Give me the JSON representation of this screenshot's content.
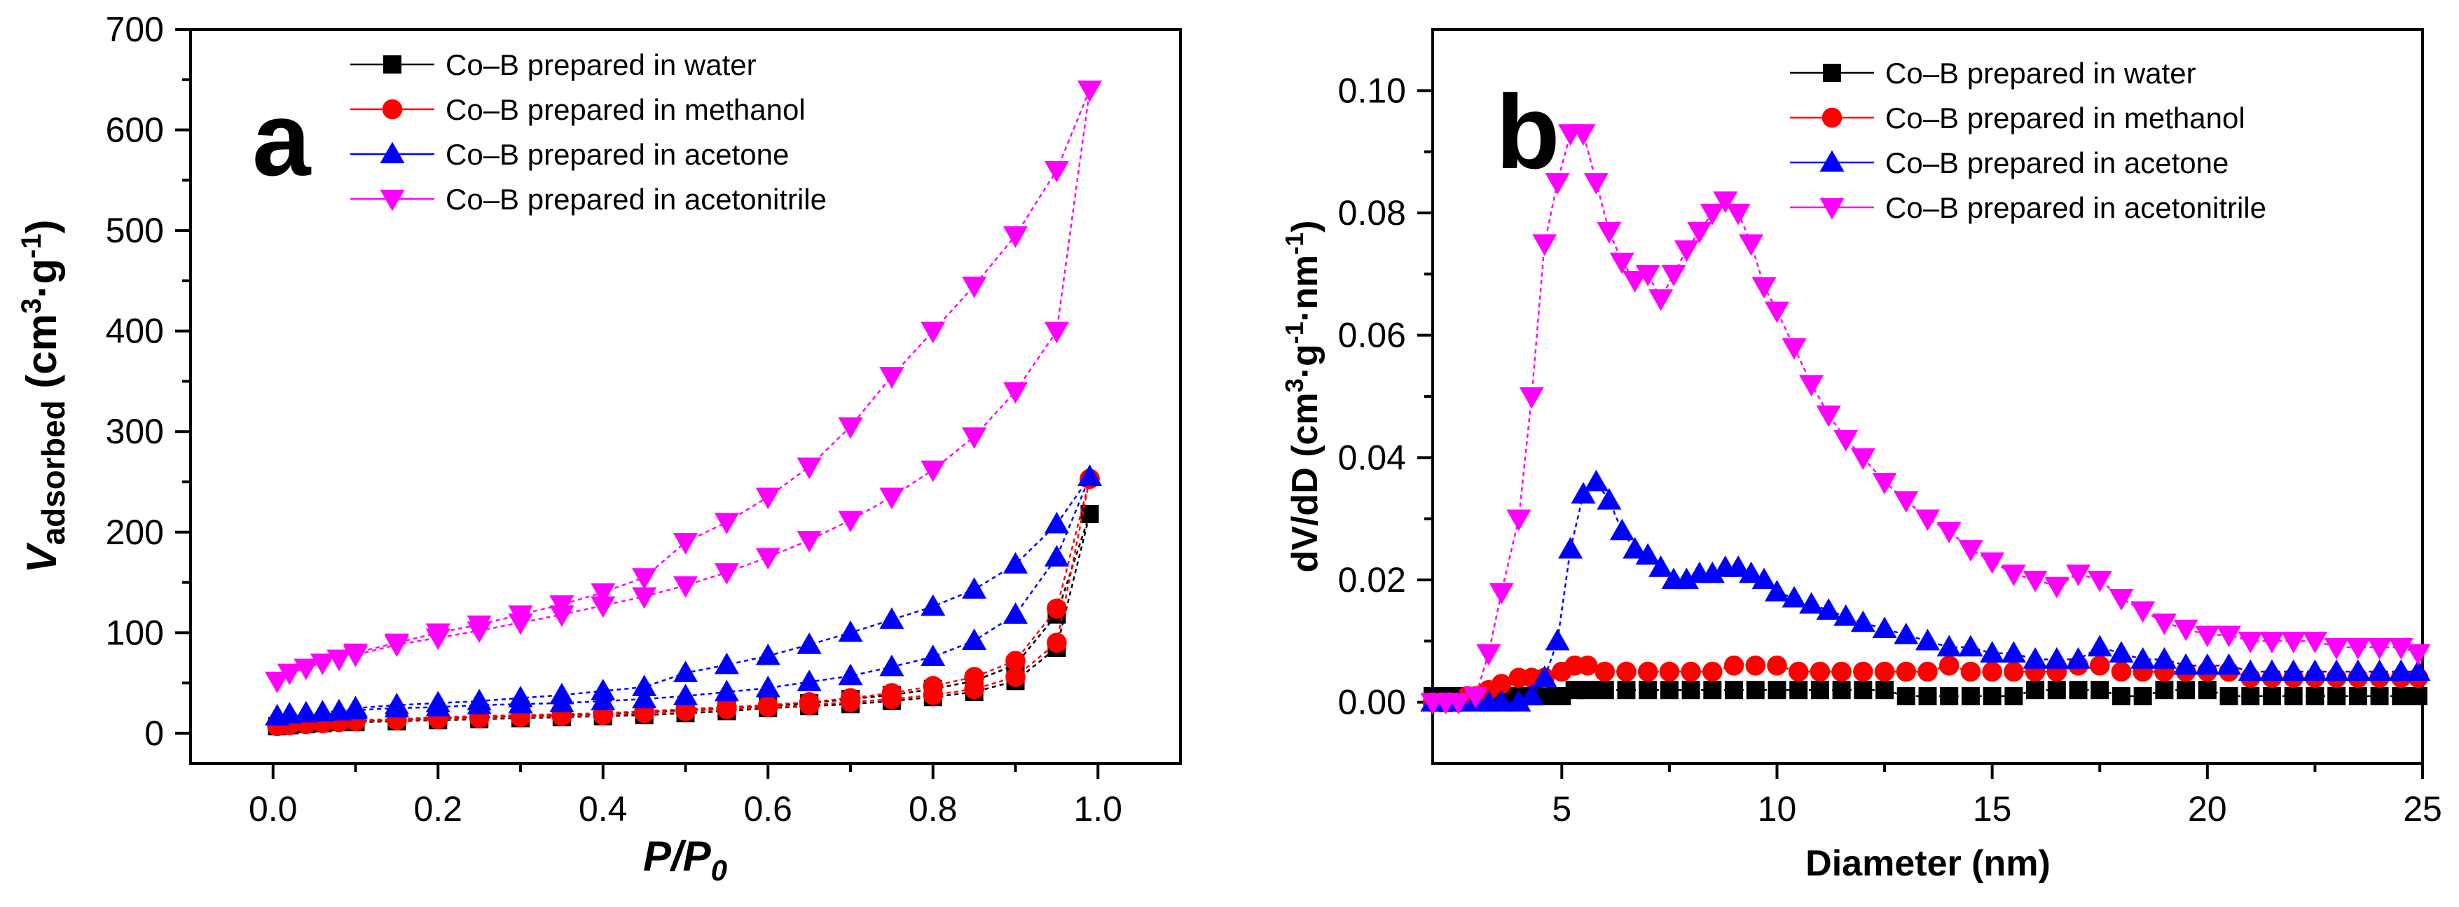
{
  "chart_data": [
    {
      "type": "scatter",
      "panel_label": "a",
      "title": "",
      "xlabel": "P/P0",
      "xlabel_parts": [
        "P/P",
        "0"
      ],
      "ylabel": "Vadsorbed (cm3·g-1)",
      "ylabel_parts": {
        "v": "V",
        "sub": "adsorbed",
        "unit_open": " (cm",
        "sup1": "3",
        "dot": "·g",
        "sup2": "-1",
        "close": ")"
      },
      "xlim": [
        -0.1,
        1.1
      ],
      "ylim": [
        -30,
        700
      ],
      "xticks": [
        0.0,
        0.2,
        0.4,
        0.6,
        0.8,
        1.0
      ],
      "xtick_labels": [
        "0.0",
        "0.2",
        "0.4",
        "0.6",
        "0.8",
        "1.0"
      ],
      "yticks": [
        0,
        100,
        200,
        300,
        400,
        500,
        600,
        700
      ],
      "ytick_labels": [
        "0",
        "100",
        "200",
        "300",
        "400",
        "500",
        "600",
        "700"
      ],
      "legend_position": "top-center",
      "series": [
        {
          "name": "Co–B prepared in water",
          "color": "#000000",
          "marker": "square",
          "adsorption_x": [
            0.005,
            0.02,
            0.04,
            0.06,
            0.08,
            0.1,
            0.15,
            0.2,
            0.25,
            0.3,
            0.35,
            0.4,
            0.45,
            0.5,
            0.55,
            0.6,
            0.65,
            0.7,
            0.75,
            0.8,
            0.85,
            0.9,
            0.95,
            0.99
          ],
          "adsorption_y": [
            7,
            8,
            9,
            10,
            11,
            11,
            12,
            13,
            14,
            15,
            16,
            17,
            18,
            20,
            22,
            25,
            27,
            29,
            32,
            36,
            41,
            52,
            85,
            218
          ],
          "desorption_x": [
            0.99,
            0.95,
            0.9,
            0.85,
            0.8,
            0.75,
            0.7,
            0.65,
            0.6,
            0.55,
            0.5,
            0.45,
            0.4,
            0.35,
            0.3,
            0.25,
            0.2,
            0.15,
            0.1
          ],
          "desorption_y": [
            218,
            118,
            68,
            52,
            44,
            38,
            34,
            30,
            27,
            25,
            23,
            21,
            19,
            18,
            17,
            16,
            15,
            13,
            12
          ]
        },
        {
          "name": "Co–B prepared in methanol",
          "color": "#ff0000",
          "marker": "circle",
          "adsorption_x": [
            0.005,
            0.02,
            0.04,
            0.06,
            0.08,
            0.1,
            0.15,
            0.2,
            0.25,
            0.3,
            0.35,
            0.4,
            0.45,
            0.5,
            0.55,
            0.6,
            0.65,
            0.7,
            0.75,
            0.8,
            0.85,
            0.9,
            0.95,
            0.99
          ],
          "adsorption_y": [
            7,
            8,
            9,
            10,
            11,
            12,
            13,
            14,
            15,
            16,
            17,
            18,
            20,
            22,
            24,
            26,
            28,
            31,
            34,
            38,
            44,
            56,
            90,
            253
          ],
          "desorption_x": [
            0.99,
            0.95,
            0.9,
            0.85,
            0.8,
            0.75,
            0.7,
            0.65,
            0.6,
            0.55,
            0.5,
            0.45,
            0.4,
            0.35,
            0.3,
            0.25,
            0.2,
            0.15,
            0.1
          ],
          "desorption_y": [
            253,
            124,
            72,
            56,
            47,
            40,
            35,
            31,
            28,
            26,
            24,
            22,
            20,
            19,
            18,
            17,
            16,
            14,
            13
          ]
        },
        {
          "name": "Co–B prepared in acetone",
          "color": "#0000ff",
          "marker": "triangle-up",
          "adsorption_x": [
            0.005,
            0.02,
            0.04,
            0.06,
            0.08,
            0.1,
            0.15,
            0.2,
            0.25,
            0.3,
            0.35,
            0.4,
            0.45,
            0.5,
            0.55,
            0.6,
            0.65,
            0.7,
            0.75,
            0.8,
            0.85,
            0.9,
            0.95,
            0.99
          ],
          "adsorption_y": [
            17,
            19,
            20,
            21,
            22,
            23,
            25,
            26,
            28,
            29,
            30,
            32,
            34,
            37,
            41,
            45,
            51,
            57,
            66,
            76,
            92,
            118,
            175,
            255
          ],
          "desorption_x": [
            0.99,
            0.95,
            0.9,
            0.85,
            0.8,
            0.75,
            0.7,
            0.65,
            0.6,
            0.55,
            0.5,
            0.45,
            0.4,
            0.35,
            0.3,
            0.25,
            0.2,
            0.15,
            0.1
          ],
          "desorption_y": [
            255,
            208,
            168,
            143,
            126,
            113,
            100,
            88,
            77,
            68,
            60,
            46,
            42,
            38,
            35,
            32,
            30,
            28,
            25
          ]
        },
        {
          "name": "Co–B prepared in acetonitrile",
          "color": "#ff00ff",
          "marker": "triangle-down",
          "adsorption_x": [
            0.005,
            0.02,
            0.04,
            0.06,
            0.08,
            0.1,
            0.15,
            0.2,
            0.25,
            0.3,
            0.35,
            0.4,
            0.45,
            0.5,
            0.55,
            0.6,
            0.65,
            0.7,
            0.75,
            0.8,
            0.85,
            0.9,
            0.95,
            0.99
          ],
          "adsorption_y": [
            52,
            60,
            65,
            70,
            74,
            78,
            88,
            95,
            102,
            110,
            118,
            127,
            136,
            147,
            160,
            175,
            192,
            212,
            235,
            262,
            295,
            340,
            400,
            640
          ],
          "desorption_x": [
            0.99,
            0.95,
            0.9,
            0.85,
            0.8,
            0.75,
            0.7,
            0.65,
            0.6,
            0.55,
            0.5,
            0.45,
            0.4,
            0.35,
            0.3,
            0.25,
            0.2,
            0.15,
            0.1
          ],
          "desorption_y": [
            640,
            560,
            495,
            445,
            400,
            355,
            305,
            265,
            235,
            210,
            190,
            155,
            140,
            128,
            118,
            108,
            100,
            90,
            80
          ]
        }
      ]
    },
    {
      "type": "scatter",
      "panel_label": "b",
      "title": "",
      "xlabel": "Diameter (nm)",
      "ylabel": "dV/dD (cm3·g-1·nm-1)",
      "ylabel_parts": {
        "pre": "dV/dD (cm",
        "sup1": "3",
        "mid1": "·g",
        "sup2": "-1",
        "mid2": "·nm",
        "sup3": "-1",
        "close": ")"
      },
      "xlim": [
        2,
        25
      ],
      "ylim": [
        -0.01,
        0.11
      ],
      "xticks": [
        5,
        10,
        15,
        20,
        25
      ],
      "xtick_labels": [
        "5",
        "10",
        "15",
        "20",
        "25"
      ],
      "yticks": [
        0.0,
        0.02,
        0.04,
        0.06,
        0.08,
        0.1
      ],
      "ytick_labels": [
        "0.00",
        "0.02",
        "0.04",
        "0.06",
        "0.08",
        "0.10"
      ],
      "legend_position": "top-right",
      "series": [
        {
          "name": "Co–B prepared in water",
          "color": "#000000",
          "marker": "square",
          "x": [
            2.0,
            2.2,
            2.4,
            2.6,
            2.8,
            3.0,
            3.3,
            3.6,
            4.0,
            4.3,
            4.6,
            5.0,
            5.3,
            5.6,
            6.0,
            6.5,
            7.0,
            7.5,
            8.0,
            8.5,
            9.0,
            9.5,
            10.0,
            10.5,
            11.0,
            11.5,
            12.0,
            12.5,
            13.0,
            13.5,
            14.0,
            14.5,
            15.0,
            15.5,
            16.0,
            16.5,
            17.0,
            17.5,
            18.0,
            18.5,
            19.0,
            19.5,
            20.0,
            20.5,
            21.0,
            21.5,
            22.0,
            22.5,
            23.0,
            23.5,
            24.0,
            24.5,
            24.9
          ],
          "y": [
            0.001,
            0.001,
            0.001,
            0.001,
            0.001,
            0.001,
            0.001,
            0.001,
            0.001,
            0.001,
            0.001,
            0.001,
            0.002,
            0.002,
            0.002,
            0.002,
            0.002,
            0.002,
            0.002,
            0.002,
            0.002,
            0.002,
            0.002,
            0.002,
            0.002,
            0.002,
            0.002,
            0.002,
            0.001,
            0.001,
            0.001,
            0.001,
            0.001,
            0.001,
            0.002,
            0.002,
            0.002,
            0.002,
            0.001,
            0.001,
            0.002,
            0.002,
            0.002,
            0.001,
            0.001,
            0.001,
            0.001,
            0.001,
            0.001,
            0.001,
            0.001,
            0.001,
            0.001
          ]
        },
        {
          "name": "Co–B prepared in methanol",
          "color": "#ff0000",
          "marker": "circle",
          "x": [
            2.0,
            2.2,
            2.4,
            2.6,
            2.8,
            3.0,
            3.3,
            3.6,
            4.0,
            4.3,
            4.6,
            5.0,
            5.3,
            5.6,
            6.0,
            6.5,
            7.0,
            7.5,
            8.0,
            8.5,
            9.0,
            9.5,
            10.0,
            10.5,
            11.0,
            11.5,
            12.0,
            12.5,
            13.0,
            13.5,
            14.0,
            14.5,
            15.0,
            15.5,
            16.0,
            16.5,
            17.0,
            17.5,
            18.0,
            18.5,
            19.0,
            19.5,
            20.0,
            20.5,
            21.0,
            21.5,
            22.0,
            22.5,
            23.0,
            23.5,
            24.0,
            24.5,
            24.9
          ],
          "y": [
            0.0,
            0.0,
            0.0,
            0.0,
            0.001,
            0.001,
            0.002,
            0.003,
            0.004,
            0.004,
            0.004,
            0.005,
            0.006,
            0.006,
            0.005,
            0.005,
            0.005,
            0.005,
            0.005,
            0.005,
            0.006,
            0.006,
            0.006,
            0.005,
            0.005,
            0.005,
            0.005,
            0.005,
            0.005,
            0.005,
            0.006,
            0.005,
            0.005,
            0.005,
            0.005,
            0.005,
            0.006,
            0.006,
            0.005,
            0.005,
            0.005,
            0.005,
            0.005,
            0.005,
            0.004,
            0.004,
            0.004,
            0.004,
            0.004,
            0.004,
            0.004,
            0.004,
            0.004
          ]
        },
        {
          "name": "Co–B prepared in acetone",
          "color": "#0000ff",
          "marker": "triangle-up",
          "x": [
            2.0,
            2.3,
            2.6,
            3.0,
            3.3,
            3.6,
            4.0,
            4.3,
            4.6,
            4.9,
            5.2,
            5.5,
            5.8,
            6.1,
            6.4,
            6.7,
            7.0,
            7.3,
            7.6,
            7.9,
            8.2,
            8.5,
            8.8,
            9.1,
            9.4,
            9.7,
            10.0,
            10.4,
            10.8,
            11.2,
            11.6,
            12.0,
            12.5,
            13.0,
            13.5,
            14.0,
            14.5,
            15.0,
            15.5,
            16.0,
            16.5,
            17.0,
            17.5,
            18.0,
            18.5,
            19.0,
            19.5,
            20.0,
            20.5,
            21.0,
            21.5,
            22.0,
            22.5,
            23.0,
            23.5,
            24.0,
            24.5,
            24.9
          ],
          "y": [
            0.0,
            0.0,
            0.0,
            0.0,
            0.0,
            0.0,
            0.0,
            0.001,
            0.004,
            0.01,
            0.025,
            0.034,
            0.036,
            0.033,
            0.028,
            0.025,
            0.024,
            0.022,
            0.02,
            0.02,
            0.021,
            0.021,
            0.022,
            0.022,
            0.021,
            0.02,
            0.018,
            0.017,
            0.016,
            0.015,
            0.014,
            0.013,
            0.012,
            0.011,
            0.01,
            0.009,
            0.009,
            0.008,
            0.008,
            0.007,
            0.007,
            0.007,
            0.009,
            0.008,
            0.007,
            0.007,
            0.006,
            0.006,
            0.006,
            0.005,
            0.005,
            0.005,
            0.005,
            0.005,
            0.005,
            0.005,
            0.005,
            0.005
          ]
        },
        {
          "name": "Co–B prepared in acetonitrile",
          "color": "#ff00ff",
          "marker": "triangle-down",
          "x": [
            2.0,
            2.3,
            2.6,
            3.0,
            3.3,
            3.6,
            4.0,
            4.3,
            4.6,
            4.9,
            5.2,
            5.5,
            5.8,
            6.1,
            6.4,
            6.7,
            7.0,
            7.3,
            7.6,
            7.9,
            8.2,
            8.5,
            8.8,
            9.1,
            9.4,
            9.7,
            10.0,
            10.4,
            10.8,
            11.2,
            11.6,
            12.0,
            12.5,
            13.0,
            13.5,
            14.0,
            14.5,
            15.0,
            15.5,
            16.0,
            16.5,
            17.0,
            17.5,
            18.0,
            18.5,
            19.0,
            19.5,
            20.0,
            20.5,
            21.0,
            21.5,
            22.0,
            22.5,
            23.0,
            23.5,
            24.0,
            24.5,
            24.9
          ],
          "y": [
            0.0,
            0.0,
            0.0,
            0.001,
            0.008,
            0.018,
            0.03,
            0.05,
            0.075,
            0.085,
            0.093,
            0.093,
            0.085,
            0.077,
            0.072,
            0.069,
            0.07,
            0.066,
            0.07,
            0.074,
            0.077,
            0.08,
            0.082,
            0.08,
            0.075,
            0.068,
            0.064,
            0.058,
            0.052,
            0.047,
            0.043,
            0.04,
            0.036,
            0.033,
            0.03,
            0.028,
            0.025,
            0.023,
            0.021,
            0.02,
            0.019,
            0.021,
            0.02,
            0.017,
            0.015,
            0.013,
            0.012,
            0.011,
            0.011,
            0.01,
            0.01,
            0.01,
            0.01,
            0.009,
            0.009,
            0.009,
            0.009,
            0.008
          ]
        }
      ]
    }
  ]
}
